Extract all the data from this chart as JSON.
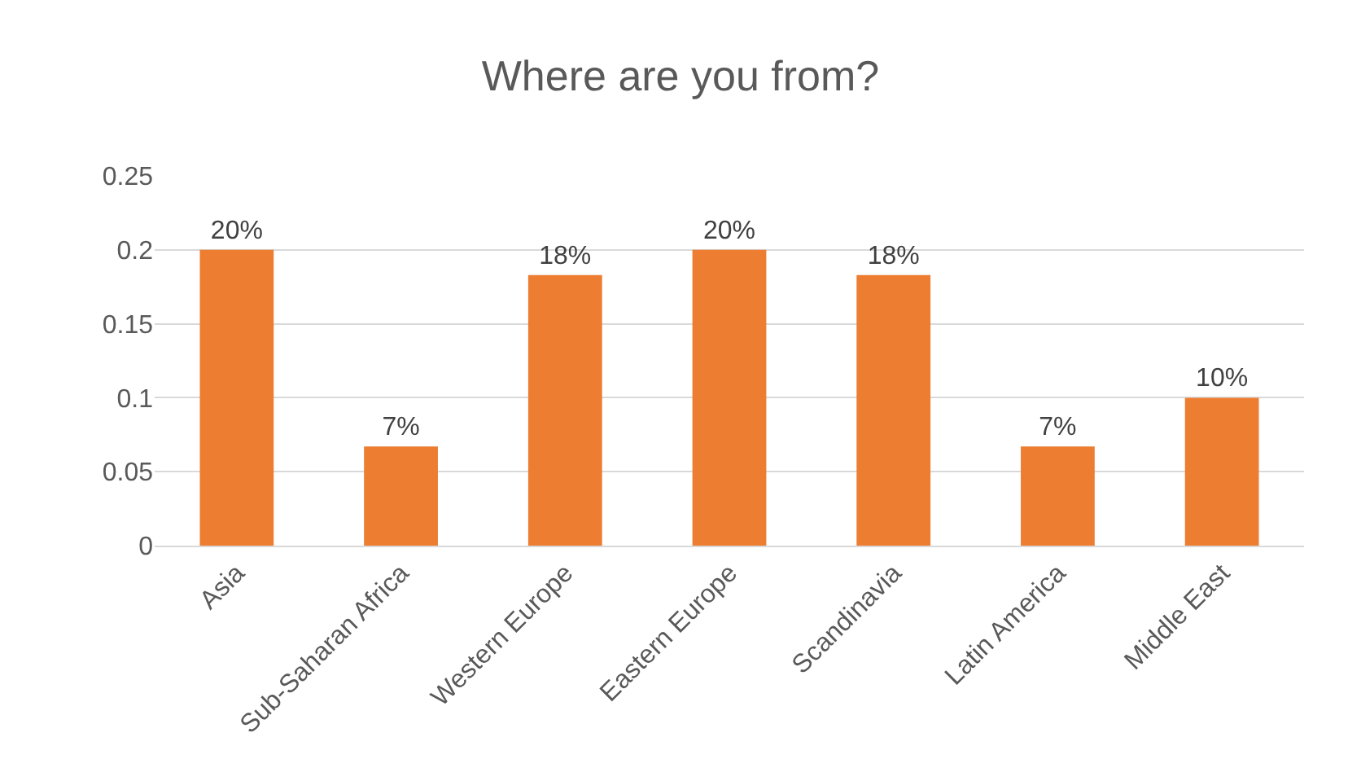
{
  "chart_data": {
    "type": "bar",
    "title": "Where are you from?",
    "categories": [
      "Asia",
      "Sub-Saharan Africa",
      "Western Europe",
      "Eastern Europe",
      "Scandinavia",
      "Latin America",
      "Middle East"
    ],
    "values": [
      0.2,
      0.067,
      0.183,
      0.2,
      0.183,
      0.067,
      0.1
    ],
    "value_labels": [
      "20%",
      "7%",
      "18%",
      "20%",
      "18%",
      "7%",
      "10%"
    ],
    "color": "#ed7d31",
    "ylim": [
      0,
      0.25
    ],
    "yticks": [
      0,
      0.05,
      0.1,
      0.15,
      0.2,
      0.25
    ],
    "grid": "y",
    "legend": false
  }
}
